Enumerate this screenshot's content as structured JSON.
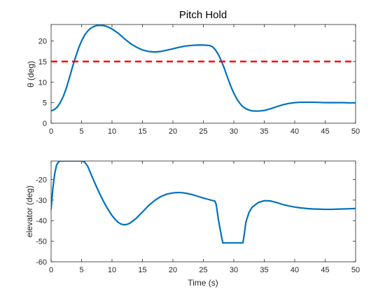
{
  "chart_data": [
    {
      "type": "line",
      "title": "Pitch Hold",
      "xlabel": "",
      "ylabel": "θ (deg)",
      "xlim": [
        0,
        50
      ],
      "ylim": [
        0,
        24
      ],
      "xticks": [
        0,
        5,
        10,
        15,
        20,
        25,
        30,
        35,
        40,
        45,
        50
      ],
      "yticks": [
        0,
        5,
        10,
        15,
        20
      ],
      "grid": false,
      "colors": {
        "series": "#0072BD",
        "reference": "#FF0000"
      },
      "series": [
        {
          "style": "solid",
          "x": [
            0,
            0.5,
            1,
            1.5,
            2,
            2.5,
            3,
            3.5,
            4,
            4.5,
            5,
            5.5,
            6,
            6.5,
            7,
            7.5,
            8,
            8.5,
            9,
            9.5,
            10,
            11,
            12,
            13,
            14,
            15,
            16,
            17,
            18,
            19,
            20,
            21,
            22,
            23,
            24,
            25,
            26,
            26.5,
            27,
            27.5,
            28,
            28.5,
            29,
            29.5,
            30,
            30.5,
            31,
            31.5,
            32,
            32.5,
            33,
            33.5,
            34,
            35,
            36,
            37,
            38,
            39,
            40,
            41,
            42,
            43,
            44,
            45,
            46,
            47,
            48,
            49,
            50
          ],
          "y": [
            3,
            3.3,
            3.9,
            5.0,
            6.5,
            8.5,
            11,
            13.6,
            16.0,
            18.2,
            20.0,
            21.4,
            22.4,
            23.1,
            23.5,
            23.75,
            23.8,
            23.75,
            23.6,
            23.3,
            22.9,
            21.9,
            20.6,
            19.4,
            18.5,
            17.8,
            17.45,
            17.3,
            17.45,
            17.75,
            18.1,
            18.45,
            18.75,
            18.9,
            19.0,
            19.0,
            18.9,
            18.6,
            17.8,
            16.6,
            15.0,
            13.1,
            11.0,
            9.0,
            7.3,
            5.9,
            4.8,
            4.0,
            3.5,
            3.2,
            3.0,
            2.95,
            2.95,
            3.1,
            3.5,
            4.0,
            4.45,
            4.8,
            5.0,
            5.1,
            5.1,
            5.1,
            5.05,
            5.0,
            5.0,
            5.0,
            5.0,
            4.95,
            4.95
          ]
        },
        {
          "style": "dashed",
          "x": [
            0,
            50
          ],
          "y": [
            15,
            15
          ]
        }
      ]
    },
    {
      "type": "line",
      "title": "",
      "xlabel": "Time (s)",
      "ylabel": "elevator (deg)",
      "xlim": [
        0,
        50
      ],
      "ylim": [
        -60,
        -11
      ],
      "xticks": [
        0,
        5,
        10,
        15,
        20,
        25,
        30,
        35,
        40,
        45,
        50
      ],
      "yticks": [
        -60,
        -50,
        -40,
        -30,
        -20
      ],
      "grid": false,
      "colors": {
        "series": "#0072BD"
      },
      "series": [
        {
          "style": "solid",
          "x": [
            0,
            0.3,
            0.6,
            0.9,
            1.2,
            1.5,
            2,
            3,
            4,
            5,
            5.5,
            6,
            6.5,
            7,
            7.5,
            8,
            8.5,
            9,
            9.5,
            10,
            10.5,
            11,
            11.5,
            12,
            12.5,
            13,
            14,
            15,
            16,
            17,
            18,
            19,
            20,
            21,
            22,
            23,
            24,
            25,
            26,
            26.9,
            27.1,
            27.5,
            28,
            28.2,
            29,
            30,
            31,
            31.5,
            31.7,
            32,
            32.5,
            33,
            34,
            35,
            36,
            37,
            38,
            39,
            40,
            41,
            42,
            43,
            44,
            45,
            46,
            47,
            48,
            49,
            50
          ],
          "y": [
            -34.5,
            -24,
            -17,
            -13,
            -11.5,
            -11,
            -11,
            -11,
            -11,
            -11,
            -11.5,
            -13.5,
            -17,
            -20.5,
            -23.8,
            -27,
            -30,
            -32.8,
            -35.2,
            -37.5,
            -39.3,
            -40.8,
            -41.7,
            -42,
            -41.8,
            -41.1,
            -38.8,
            -35.8,
            -32.7,
            -30.2,
            -28.3,
            -27.1,
            -26.5,
            -26.3,
            -26.6,
            -27.2,
            -28.1,
            -29.0,
            -29.8,
            -30.5,
            -32,
            -40,
            -48,
            -50.8,
            -50.8,
            -50.8,
            -50.8,
            -50.8,
            -47,
            -40.5,
            -36,
            -33.5,
            -31.2,
            -30.3,
            -30.4,
            -31.2,
            -32.1,
            -32.8,
            -33.4,
            -33.8,
            -34.1,
            -34.3,
            -34.4,
            -34.5,
            -34.5,
            -34.4,
            -34.3,
            -34.2,
            -34.1
          ]
        }
      ]
    }
  ]
}
